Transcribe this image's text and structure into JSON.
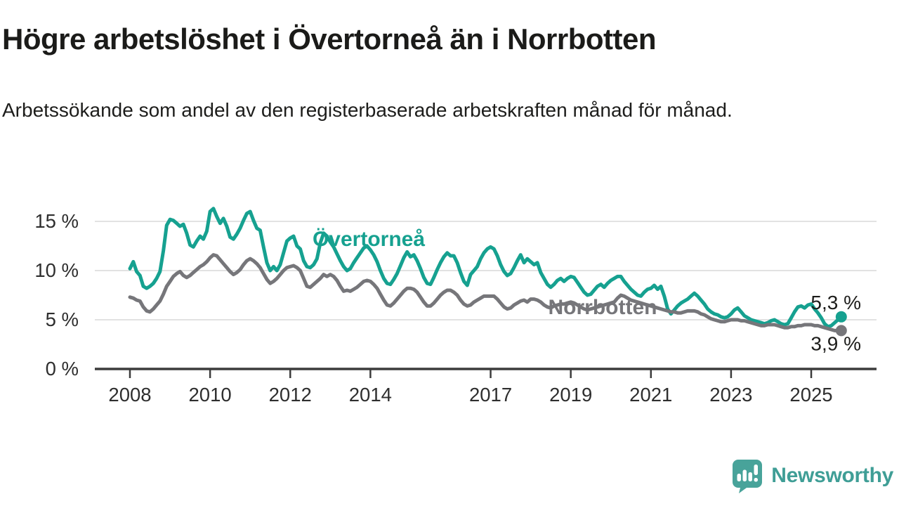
{
  "title": "Högre arbetslöshet i Övertorneå än i Norrbotten",
  "subtitle": "Arbetssökande som andel av den registerbaserade arbetskraften månad för månad.",
  "branding": {
    "logo_text": "Newsworthy",
    "logo_icon": "bar-chart-speech-bubble-icon",
    "logo_color": "#48a39a"
  },
  "colors": {
    "overtornea_line": "#16a190",
    "norrbotten_line": "#76767a",
    "gridline": "#d8d8d8",
    "axis": "#3c3c3c",
    "axis_text": "#2e2e2e",
    "annotation_text": "#1d1d1b"
  },
  "chart_data": {
    "type": "line",
    "unit": "%",
    "x_start": {
      "year": 2008,
      "month": 1
    },
    "x_end": {
      "year": 2025,
      "month": 10
    },
    "x_tick_years": [
      2008,
      2010,
      2012,
      2014,
      2017,
      2019,
      2021,
      2023,
      2025
    ],
    "y_gridlines": [
      5,
      10,
      15
    ],
    "y_tick_labels": [
      "0 %",
      "5 %",
      "10 %",
      "15 %"
    ],
    "ylim": [
      0,
      17
    ],
    "grid": "horizontal",
    "legend": "inline-labels",
    "series": [
      {
        "name": "Övertorneå",
        "color": "#16a190",
        "end_label": "5,3 %",
        "values": [
          10.2,
          10.9,
          9.9,
          9.5,
          8.4,
          8.2,
          8.4,
          8.7,
          9.2,
          9.9,
          12.0,
          14.6,
          15.2,
          15.1,
          14.8,
          14.5,
          14.7,
          13.8,
          12.6,
          12.4,
          13.0,
          13.5,
          13.2,
          14.0,
          16.0,
          16.3,
          15.5,
          14.8,
          15.3,
          14.5,
          13.4,
          13.2,
          13.7,
          14.3,
          15.1,
          15.8,
          16.0,
          15.1,
          14.3,
          14.1,
          12.4,
          10.8,
          10.0,
          10.4,
          10.0,
          10.6,
          11.8,
          13.0,
          13.3,
          13.5,
          12.5,
          12.2,
          11.0,
          10.4,
          10.3,
          10.6,
          11.2,
          12.8,
          13.8,
          13.5,
          12.9,
          12.4,
          11.7,
          11.0,
          10.4,
          10.0,
          10.2,
          10.8,
          11.3,
          11.8,
          12.3,
          12.5,
          12.1,
          11.6,
          10.9,
          10.0,
          9.2,
          8.7,
          8.6,
          9.1,
          9.7,
          10.5,
          11.3,
          11.9,
          11.4,
          11.6,
          11.0,
          10.2,
          9.3,
          8.7,
          8.6,
          9.3,
          10.1,
          10.8,
          11.4,
          11.8,
          11.5,
          11.5,
          10.8,
          9.8,
          8.9,
          8.5,
          9.6,
          10.0,
          10.4,
          11.2,
          11.8,
          12.2,
          12.4,
          12.2,
          11.5,
          10.6,
          9.9,
          9.5,
          9.7,
          10.3,
          11.0,
          11.6,
          10.8,
          11.2,
          10.9,
          10.6,
          10.8,
          9.8,
          9.2,
          8.6,
          8.3,
          8.6,
          9.0,
          9.2,
          8.9,
          9.2,
          9.4,
          9.3,
          8.8,
          8.3,
          7.8,
          7.5,
          7.6,
          8.0,
          8.4,
          8.6,
          8.3,
          8.7,
          9.0,
          9.2,
          9.4,
          9.4,
          8.9,
          8.5,
          8.1,
          7.8,
          7.5,
          7.4,
          7.8,
          8.1,
          8.2,
          8.5,
          8.1,
          8.4,
          7.4,
          6.1,
          5.6,
          6.0,
          6.4,
          6.7,
          6.9,
          7.1,
          7.4,
          7.7,
          7.4,
          7.0,
          6.6,
          6.1,
          5.8,
          5.6,
          5.5,
          5.3,
          5.2,
          5.3,
          5.6,
          6.0,
          6.2,
          5.8,
          5.4,
          5.2,
          5.0,
          4.9,
          4.8,
          4.7,
          4.6,
          4.7,
          4.9,
          5.0,
          4.8,
          4.6,
          4.5,
          4.6,
          5.2,
          5.8,
          6.3,
          6.4,
          6.2,
          6.5,
          6.6,
          6.1,
          5.7,
          5.2,
          4.6,
          4.3,
          4.4,
          4.7,
          5.0,
          5.3
        ]
      },
      {
        "name": "Norrbotten",
        "color": "#76767a",
        "end_label": "3,9 %",
        "values": [
          7.3,
          7.2,
          7.0,
          6.9,
          6.3,
          5.9,
          5.8,
          6.1,
          6.5,
          6.9,
          7.6,
          8.4,
          8.9,
          9.4,
          9.7,
          9.9,
          9.5,
          9.3,
          9.5,
          9.8,
          10.1,
          10.4,
          10.6,
          10.9,
          11.3,
          11.6,
          11.5,
          11.1,
          10.7,
          10.3,
          9.9,
          9.6,
          9.8,
          10.1,
          10.6,
          11.0,
          11.2,
          11.0,
          10.7,
          10.3,
          9.7,
          9.1,
          8.7,
          8.9,
          9.2,
          9.6,
          10.0,
          10.3,
          10.4,
          10.5,
          10.3,
          10.0,
          9.2,
          8.4,
          8.3,
          8.6,
          8.9,
          9.2,
          9.6,
          9.4,
          9.6,
          9.4,
          9.0,
          8.4,
          7.9,
          8.0,
          7.9,
          8.1,
          8.3,
          8.6,
          8.9,
          9.0,
          8.9,
          8.6,
          8.2,
          7.6,
          7.0,
          6.5,
          6.4,
          6.7,
          7.1,
          7.5,
          7.9,
          8.2,
          8.2,
          8.1,
          7.8,
          7.3,
          6.8,
          6.4,
          6.4,
          6.7,
          7.1,
          7.5,
          7.8,
          8.0,
          8.0,
          7.8,
          7.5,
          7.0,
          6.6,
          6.4,
          6.5,
          6.8,
          7.0,
          7.2,
          7.4,
          7.4,
          7.4,
          7.4,
          7.1,
          6.7,
          6.3,
          6.1,
          6.2,
          6.5,
          6.7,
          6.9,
          7.0,
          6.8,
          7.1,
          7.1,
          7.0,
          6.8,
          6.5,
          6.3,
          6.2,
          6.4,
          6.5,
          6.6,
          6.6,
          6.7,
          6.8,
          6.7,
          6.5,
          6.3,
          6.1,
          6.0,
          6.1,
          6.2,
          6.3,
          6.4,
          6.5,
          6.6,
          6.7,
          6.8,
          7.2,
          7.5,
          7.4,
          7.2,
          7.0,
          6.9,
          6.8,
          6.7,
          6.6,
          6.5,
          6.4,
          6.3,
          6.2,
          6.1,
          6.0,
          5.9,
          5.8,
          5.8,
          5.7,
          5.7,
          5.8,
          5.9,
          5.9,
          5.9,
          5.8,
          5.6,
          5.5,
          5.3,
          5.1,
          5.0,
          4.9,
          4.8,
          4.8,
          4.9,
          5.0,
          5.0,
          5.0,
          4.9,
          4.9,
          4.8,
          4.7,
          4.6,
          4.5,
          4.4,
          4.4,
          4.5,
          4.5,
          4.5,
          4.4,
          4.3,
          4.2,
          4.2,
          4.3,
          4.3,
          4.4,
          4.4,
          4.5,
          4.5,
          4.5,
          4.4,
          4.4,
          4.3,
          4.2,
          4.1,
          4.0,
          3.9,
          3.9,
          3.9
        ]
      }
    ]
  }
}
